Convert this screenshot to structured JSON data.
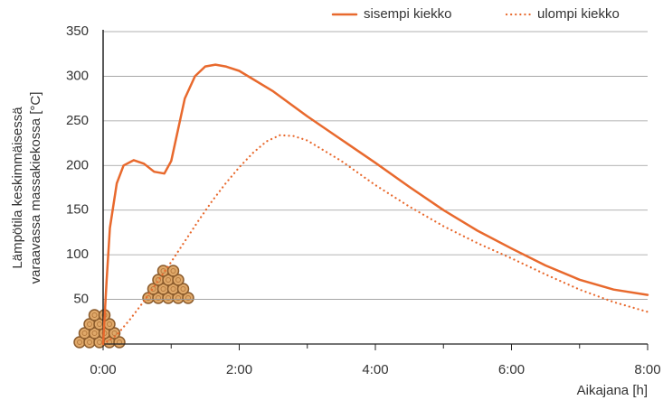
{
  "chart_data": {
    "type": "line",
    "y_label_lines": [
      "Lämpötila keskimmäisessä",
      "varaavassa massakiekossa  [°C]"
    ],
    "x_label": "Aikajana [h]",
    "xlim": [
      0,
      8
    ],
    "ylim": [
      0,
      350
    ],
    "xticks": [
      {
        "value": 0,
        "label": "0:00"
      },
      {
        "value": 2,
        "label": "2:00"
      },
      {
        "value": 4,
        "label": "4:00"
      },
      {
        "value": 6,
        "label": "6:00"
      },
      {
        "value": 8,
        "label": "8:00"
      }
    ],
    "xminorticks": [
      1,
      3,
      5,
      7
    ],
    "yticks": [
      50,
      100,
      150,
      200,
      250,
      300,
      350
    ],
    "grid": true,
    "legend": "top-right",
    "series": [
      {
        "name": "sisempi kiekko",
        "color": "#e8692d",
        "dash": "solid",
        "x": [
          0,
          0.05,
          0.1,
          0.2,
          0.3,
          0.45,
          0.6,
          0.75,
          0.9,
          1.0,
          1.1,
          1.2,
          1.35,
          1.5,
          1.65,
          1.8,
          2,
          2.5,
          3,
          3.5,
          4,
          4.5,
          5,
          5.5,
          6,
          6.5,
          7,
          7.5,
          8
        ],
        "values": [
          0,
          70,
          130,
          180,
          200,
          206,
          202,
          193,
          191,
          205,
          240,
          275,
          300,
          311,
          313,
          311,
          306,
          283,
          255,
          229,
          203,
          176,
          150,
          127,
          107,
          88,
          72,
          61,
          55
        ]
      },
      {
        "name": "ulompi kiekko",
        "color": "#e8692d",
        "dash": "dotted",
        "x": [
          0,
          0.2,
          0.4,
          0.6,
          0.8,
          1.0,
          1.2,
          1.4,
          1.6,
          1.8,
          2.0,
          2.2,
          2.4,
          2.6,
          2.8,
          3.0,
          3.5,
          4.0,
          4.5,
          5.0,
          5.5,
          6.0,
          6.5,
          7.0,
          7.5,
          8.0
        ],
        "values": [
          0,
          10,
          28,
          48,
          70,
          92,
          115,
          138,
          160,
          180,
          198,
          214,
          227,
          234,
          233,
          228,
          205,
          178,
          154,
          132,
          113,
          96,
          78,
          61,
          47,
          36
        ]
      }
    ]
  }
}
